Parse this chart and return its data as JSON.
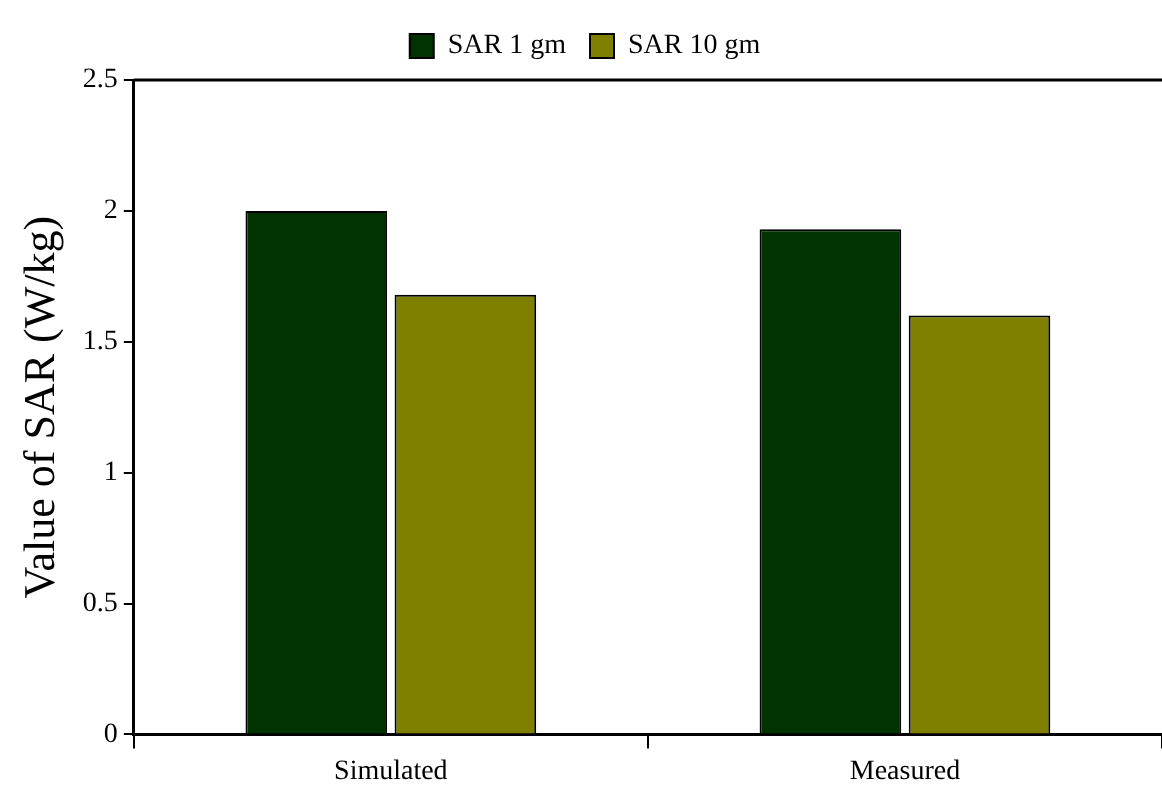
{
  "chart_data": {
    "type": "bar",
    "ylabel": "Value of SAR (W/kg)",
    "categories": [
      "Simulated",
      "Measured"
    ],
    "series": [
      {
        "name": "SAR 1 gm",
        "color": "#003300",
        "values": [
          2.0,
          1.93
        ]
      },
      {
        "name": "SAR 10 gm",
        "color": "#808000",
        "values": [
          1.68,
          1.6
        ]
      }
    ],
    "ylim": [
      0,
      2.5
    ],
    "yticks": [
      0,
      0.5,
      1,
      1.5,
      2,
      2.5
    ],
    "grid": false,
    "legend": "top"
  }
}
